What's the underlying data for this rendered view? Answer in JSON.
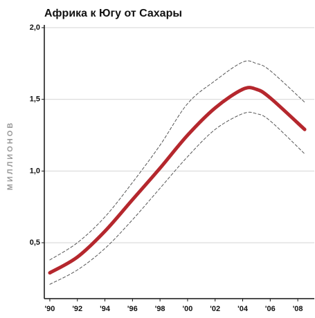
{
  "chart_data": {
    "type": "line",
    "title": "Африка к Югу от Сахары",
    "y_label": "МИЛЛИОНОВ",
    "x": [
      1990,
      1992,
      1994,
      1996,
      1998,
      2000,
      2002,
      2004,
      2005,
      2006,
      2008.5
    ],
    "series": [
      {
        "color": "#555555",
        "dashed": true,
        "width": 1,
        "values": [
          0.38,
          0.5,
          0.68,
          0.92,
          1.18,
          1.47,
          1.63,
          1.76,
          1.75,
          1.7,
          1.48
        ]
      },
      {
        "color": "#555555",
        "dashed": true,
        "width": 1,
        "values": [
          0.21,
          0.31,
          0.46,
          0.66,
          0.88,
          1.1,
          1.29,
          1.4,
          1.4,
          1.35,
          1.12
        ]
      },
      {
        "color": "#b5272d",
        "dashed": false,
        "width": 5,
        "values": [
          0.29,
          0.4,
          0.58,
          0.8,
          1.02,
          1.25,
          1.44,
          1.57,
          1.57,
          1.51,
          1.29
        ]
      }
    ],
    "xlim": [
      1989.6,
      2009.2
    ],
    "ylim": [
      0.11,
      2.0
    ],
    "xticks": [
      {
        "value": 1990,
        "label": "'90"
      },
      {
        "value": 1992,
        "label": "'92"
      },
      {
        "value": 1994,
        "label": "'94"
      },
      {
        "value": 1996,
        "label": "'96"
      },
      {
        "value": 1998,
        "label": "'98"
      },
      {
        "value": 2000,
        "label": "'00"
      },
      {
        "value": 2002,
        "label": "'02"
      },
      {
        "value": 2004,
        "label": "'04"
      },
      {
        "value": 2006,
        "label": "'06"
      },
      {
        "value": 2008,
        "label": "'08"
      }
    ],
    "yticks": [
      {
        "value": 0.5,
        "label": "0,5"
      },
      {
        "value": 1.0,
        "label": "1,0"
      },
      {
        "value": 1.5,
        "label": "1,5"
      },
      {
        "value": 2.0,
        "label": "2,0"
      }
    ],
    "grid": true
  }
}
